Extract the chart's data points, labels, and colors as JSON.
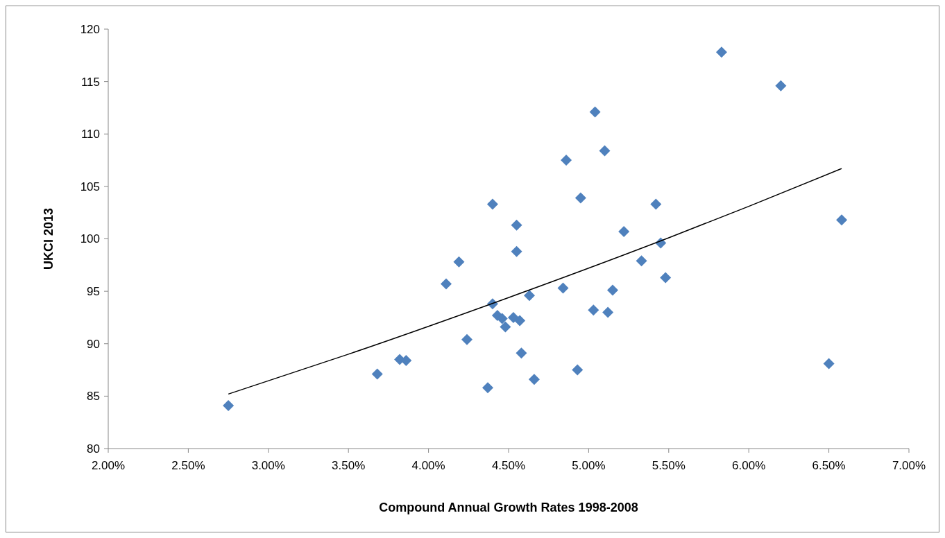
{
  "chart_data": {
    "type": "scatter",
    "xlabel": "Compound Annual Growth Rates 1998-2008",
    "ylabel": "UKCI 2013",
    "xlim": [
      2,
      7
    ],
    "xticks": [
      {
        "value": 2,
        "label": "2.00%"
      },
      {
        "value": 2.5,
        "label": "2.50%"
      },
      {
        "value": 3,
        "label": "3.00%"
      },
      {
        "value": 3.5,
        "label": "3.50%"
      },
      {
        "value": 4,
        "label": "4.00%"
      },
      {
        "value": 4.5,
        "label": "4.50%"
      },
      {
        "value": 5,
        "label": "5.00%"
      },
      {
        "value": 5.5,
        "label": "5.50%"
      },
      {
        "value": 6,
        "label": "6.00%"
      },
      {
        "value": 6.5,
        "label": "6.50%"
      },
      {
        "value": 7,
        "label": "7.00%"
      }
    ],
    "ylim": [
      80,
      120
    ],
    "yticks": [
      80,
      85,
      90,
      95,
      100,
      105,
      110,
      115,
      120
    ],
    "grid": false,
    "marker": "diamond",
    "series": [
      {
        "color": "#4f81bd",
        "x": [
          2.75,
          3.68,
          3.82,
          3.86,
          4.11,
          4.19,
          4.24,
          4.37,
          4.4,
          4.4,
          4.43,
          4.46,
          4.48,
          4.53,
          4.55,
          4.55,
          4.57,
          4.58,
          4.63,
          4.66,
          4.84,
          4.86,
          4.93,
          4.95,
          5.03,
          5.04,
          5.1,
          5.12,
          5.15,
          5.22,
          5.33,
          5.42,
          5.45,
          5.48,
          5.83,
          6.2,
          6.5,
          6.58
        ],
        "values": [
          84.1,
          87.1,
          88.5,
          88.4,
          95.7,
          97.8,
          90.4,
          85.8,
          103.3,
          93.8,
          92.7,
          92.4,
          91.6,
          92.5,
          101.3,
          98.8,
          92.2,
          89.1,
          94.6,
          86.6,
          95.3,
          107.5,
          87.5,
          103.9,
          93.2,
          112.1,
          108.4,
          93.0,
          95.1,
          100.7,
          97.9,
          103.3,
          99.6,
          96.3,
          117.8,
          114.6,
          88.1,
          101.8
        ]
      },
      {
        "type": "line",
        "color": "#000000",
        "marker": "none",
        "x": [
          2.75,
          3.5,
          4.5,
          5.5,
          6.0,
          6.58
        ],
        "values": [
          85.2,
          89.0,
          94.4,
          100.1,
          103.1,
          106.7
        ]
      }
    ]
  }
}
